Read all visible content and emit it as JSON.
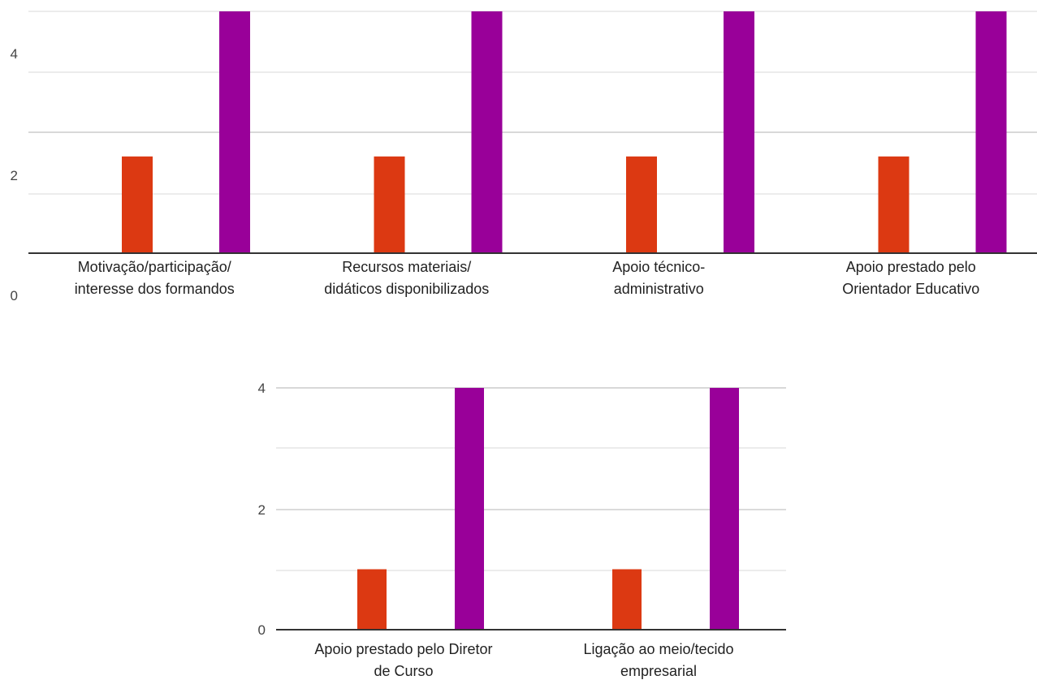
{
  "chart_data": [
    {
      "type": "bar",
      "categories": [
        [
          "Motivação/participação/",
          "interesse dos formandos"
        ],
        [
          "Recursos materiais/",
          "didáticos disponibilizados"
        ],
        [
          "Apoio técnico-",
          "administrativo"
        ],
        [
          "Apoio prestado pelo",
          "Orientador Educativo"
        ]
      ],
      "series": [
        {
          "color": "#dc3912",
          "values": [
            2,
            2,
            2,
            2
          ]
        },
        {
          "color": "#990099",
          "values": [
            5,
            5,
            5,
            5
          ]
        }
      ],
      "yticks": [
        "0",
        "2",
        "4"
      ],
      "ylim": [
        0,
        5
      ],
      "grid": true,
      "legend": "none"
    },
    {
      "type": "bar",
      "categories": [
        [
          "Apoio prestado pelo Diretor",
          "de Curso"
        ],
        [
          "Ligação ao meio/tecido",
          "empresarial"
        ]
      ],
      "series": [
        {
          "color": "#dc3912",
          "values": [
            1,
            1
          ]
        },
        {
          "color": "#990099",
          "values": [
            4,
            4
          ]
        }
      ],
      "yticks": [
        "0",
        "2",
        "4"
      ],
      "ylim": [
        0,
        4
      ],
      "grid": true,
      "legend": "none"
    }
  ]
}
